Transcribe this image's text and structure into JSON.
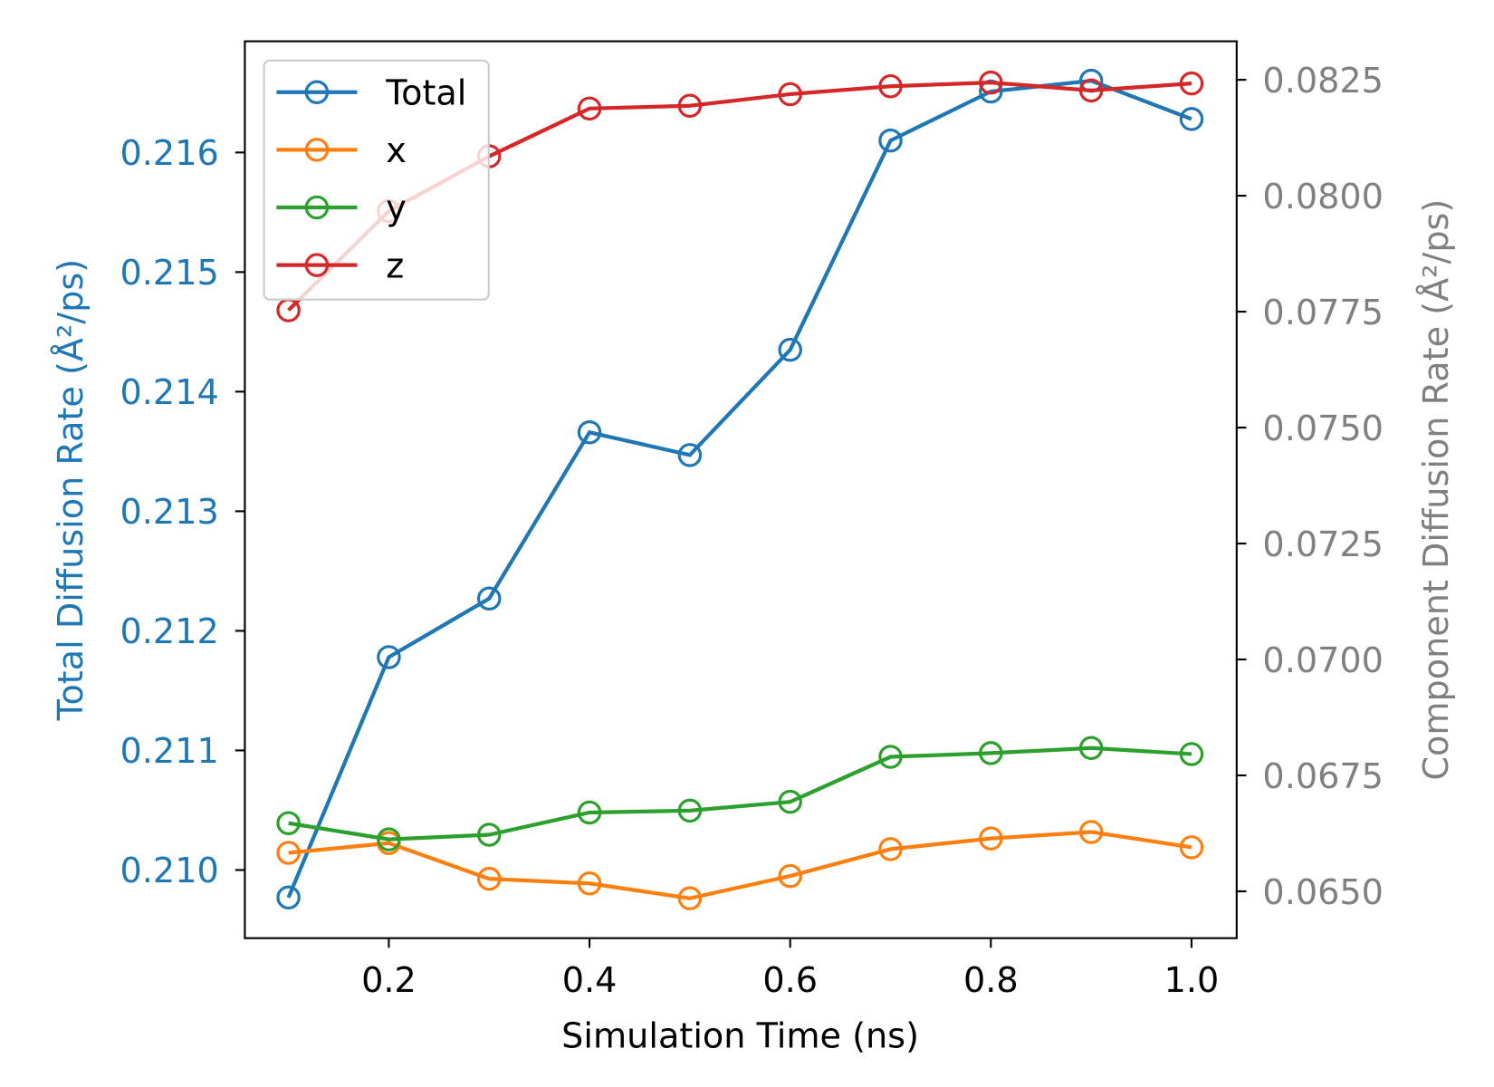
{
  "chart_data": {
    "type": "line",
    "xlabel": "Simulation Time (ns)",
    "ylabel_left": "Total Diffusion Rate (Å²/ps)",
    "ylabel_right": "Component Diffusion Rate (Å²/ps)",
    "xlim": [
      0.0565,
      1.045
    ],
    "ylim_left": [
      0.20943,
      0.21693
    ],
    "ylim_right": [
      0.06399,
      0.08333
    ],
    "x_ticks": [
      0.2,
      0.4,
      0.6,
      0.8,
      1.0
    ],
    "x_tick_labels": [
      "0.2",
      "0.4",
      "0.6",
      "0.8",
      "1.0"
    ],
    "y_left_ticks": [
      0.21,
      0.211,
      0.212,
      0.213,
      0.214,
      0.215,
      0.216
    ],
    "y_left_tick_labels": [
      "0.210",
      "0.211",
      "0.212",
      "0.213",
      "0.214",
      "0.215",
      "0.216"
    ],
    "y_right_ticks": [
      0.065,
      0.0675,
      0.07,
      0.0725,
      0.075,
      0.0775,
      0.08,
      0.0825
    ],
    "y_right_tick_labels": [
      "0.0650",
      "0.0675",
      "0.0700",
      "0.0725",
      "0.0750",
      "0.0775",
      "0.0800",
      "0.0825"
    ],
    "left_axis_color": "#1f77b4",
    "right_axis_color": "#808080",
    "grid": false,
    "legend_position": "upper-left",
    "x": [
      0.1,
      0.2,
      0.3,
      0.4,
      0.5,
      0.6,
      0.7,
      0.8,
      0.9,
      1.0
    ],
    "series": [
      {
        "name": "Total",
        "axis": "left",
        "color": "#1f77b4",
        "values": [
          0.20977,
          0.21178,
          0.21227,
          0.21366,
          0.21347,
          0.21435,
          0.2161,
          0.21651,
          0.2166,
          0.21628
        ]
      },
      {
        "name": "x",
        "axis": "right",
        "color": "#ff7f0e",
        "values": [
          0.06583,
          0.06604,
          0.06527,
          0.06517,
          0.06485,
          0.06533,
          0.06591,
          0.06614,
          0.06628,
          0.06595
        ]
      },
      {
        "name": "y",
        "axis": "right",
        "color": "#2ca02c",
        "values": [
          0.06647,
          0.06612,
          0.06622,
          0.0667,
          0.06674,
          0.06693,
          0.0679,
          0.06798,
          0.06809,
          0.06796
        ]
      },
      {
        "name": "z",
        "axis": "right",
        "color": "#d62728",
        "values": [
          0.07753,
          0.07967,
          0.08085,
          0.08188,
          0.08194,
          0.08219,
          0.08236,
          0.08244,
          0.08227,
          0.08242
        ]
      }
    ]
  }
}
